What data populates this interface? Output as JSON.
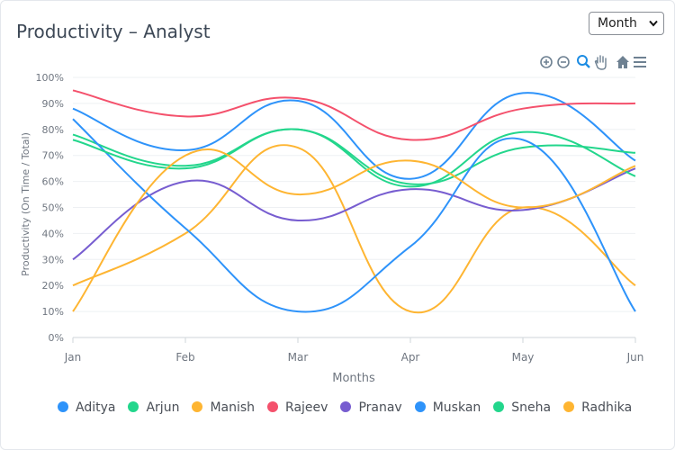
{
  "header": {
    "title": "Productivity – Analyst",
    "period_select": {
      "value": "Month",
      "options": [
        "Month"
      ]
    }
  },
  "toolbar": {
    "icons": [
      "zoom-in-icon",
      "zoom-out-icon",
      "selection-zoom-icon",
      "pan-icon",
      "home-icon",
      "menu-icon"
    ]
  },
  "colors": {
    "Aditya": "#2e93fa",
    "Arjun": "#23d68c",
    "Manish": "#feb532",
    "Rajeev": "#f4516c",
    "Pranav": "#775dd0",
    "Muskan": "#2e93fa",
    "Sneha": "#23d68c",
    "Radhika": "#feb532"
  },
  "chart_data": {
    "type": "line",
    "curve": "smooth",
    "title": "Productivity – Analyst",
    "xlabel": "Months",
    "ylabel": "Productivity (On Time / Total)",
    "categories": [
      "Jan",
      "Feb",
      "Mar",
      "Apr",
      "May",
      "Jun"
    ],
    "ylim": [
      0,
      100
    ],
    "yticks": [
      "0%",
      "10%",
      "20%",
      "30%",
      "40%",
      "50%",
      "60%",
      "70%",
      "80%",
      "90%",
      "100%"
    ],
    "grid": true,
    "legend_position": "bottom",
    "series": [
      {
        "name": "Aditya",
        "values": [
          88,
          72,
          91,
          61,
          94,
          68
        ]
      },
      {
        "name": "Arjun",
        "values": [
          78,
          66,
          80,
          59,
          73,
          71
        ]
      },
      {
        "name": "Manish",
        "values": [
          20,
          40,
          73,
          10,
          50,
          20
        ]
      },
      {
        "name": "Rajeev",
        "values": [
          95,
          85,
          92,
          76,
          88,
          90
        ]
      },
      {
        "name": "Pranav",
        "values": [
          30,
          60,
          45,
          57,
          49,
          65
        ]
      },
      {
        "name": "Muskan",
        "values": [
          84,
          42,
          10,
          35,
          76,
          10
        ]
      },
      {
        "name": "Sneha",
        "values": [
          76,
          65,
          80,
          58,
          79,
          62
        ]
      },
      {
        "name": "Radhika",
        "values": [
          10,
          70,
          55,
          68,
          50,
          66
        ]
      }
    ]
  }
}
